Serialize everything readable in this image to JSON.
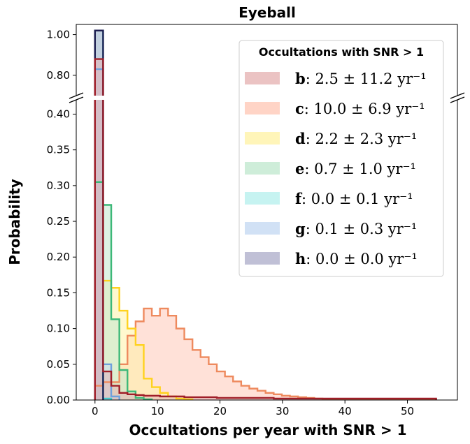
{
  "chart_data": {
    "type": "histogram",
    "title": "Eyeball",
    "xlabel": "Occultations per year with SNR > 1",
    "ylabel": "Probability",
    "xlim": [
      -3,
      58
    ],
    "ylim_lower": [
      0,
      0.42
    ],
    "ylim_upper": [
      0.7,
      1.05
    ],
    "bin_width": 1.3,
    "x_ticks": [
      "0",
      "10",
      "20",
      "30",
      "40",
      "50"
    ],
    "y_ticks_lower": [
      "0.00",
      "0.05",
      "0.10",
      "0.15",
      "0.20",
      "0.25",
      "0.30",
      "0.35",
      "0.40"
    ],
    "y_ticks_upper": [
      "0.80",
      "1.00"
    ],
    "legend": {
      "title": "Occultations with SNR > 1",
      "placement": "upper-right"
    },
    "series": [
      {
        "key": "c",
        "legend_label": "c",
        "legend_value": "10.0 ± 6.9 yr⁻¹",
        "edge": "#ee8a5e",
        "fill": "#ffc9b8",
        "x0": 0,
        "values": [
          0.02,
          0.025,
          0.025,
          0.05,
          0.09,
          0.11,
          0.128,
          0.118,
          0.128,
          0.118,
          0.1,
          0.085,
          0.07,
          0.06,
          0.05,
          0.04,
          0.033,
          0.026,
          0.02,
          0.016,
          0.013,
          0.01,
          0.008,
          0.006,
          0.005,
          0.004,
          0.003,
          0.002,
          0.0015,
          0.001,
          0.001,
          0.0008,
          0.0006,
          0.0005,
          0.0004,
          0.0003,
          0.0002,
          0.0002,
          0.0001,
          0.0001,
          0.0001,
          0.0001
        ]
      },
      {
        "key": "d",
        "legend_label": "d",
        "legend_value": "2.2 ± 2.3 yr⁻¹",
        "edge": "#ffd21e",
        "fill": "#fff2a8",
        "x0": 0,
        "values": [
          0.305,
          0.167,
          0.157,
          0.125,
          0.1,
          0.077,
          0.03,
          0.018,
          0.01,
          0.005,
          0.002,
          0.001
        ]
      },
      {
        "key": "e",
        "legend_label": "e",
        "legend_value": "0.7 ± 1.0 yr⁻¹",
        "edge": "#3cb878",
        "fill": "#c2e8d0",
        "x0": 0,
        "values": [
          0.305,
          0.273,
          0.113,
          0.042,
          0.012,
          0.003,
          0.001
        ]
      },
      {
        "key": "f",
        "legend_label": "f",
        "legend_value": "0.0 ± 0.1 yr⁻¹",
        "edge": "#40c8cc",
        "fill": "#b8f0ee",
        "x0": 0,
        "values": [
          1.02,
          0.002
        ]
      },
      {
        "key": "g",
        "legend_label": "g",
        "legend_value": "0.1 ± 0.3 yr⁻¹",
        "edge": "#6fa0dc",
        "fill": "#c6daf2",
        "x0": 0,
        "values": [
          0.83,
          0.05,
          0.005
        ]
      },
      {
        "key": "h",
        "legend_label": "h",
        "legend_value": "0.0 ± 0.0 yr⁻¹",
        "edge": "#1e1e50",
        "fill": "#b0b0cc",
        "x0": 0,
        "values": [
          1.02
        ]
      },
      {
        "key": "b",
        "legend_label": "b",
        "legend_value": "2.5 ± 11.2 yr⁻¹",
        "edge": "#a01e28",
        "fill": "#e6b4b4",
        "x0": 0,
        "values": [
          0.88,
          0.04,
          0.02,
          0.01,
          0.008,
          0.007,
          0.006,
          0.006,
          0.005,
          0.005,
          0.005,
          0.004,
          0.004,
          0.004,
          0.004,
          0.003,
          0.003,
          0.003,
          0.003,
          0.003,
          0.003,
          0.003,
          0.002,
          0.002,
          0.002,
          0.002,
          0.002,
          0.002,
          0.002,
          0.002,
          0.002,
          0.002,
          0.002,
          0.002,
          0.002,
          0.002,
          0.002,
          0.002,
          0.002,
          0.002,
          0.002,
          0.002
        ]
      }
    ],
    "legend_order": [
      "b",
      "c",
      "d",
      "e",
      "f",
      "g",
      "h"
    ]
  }
}
